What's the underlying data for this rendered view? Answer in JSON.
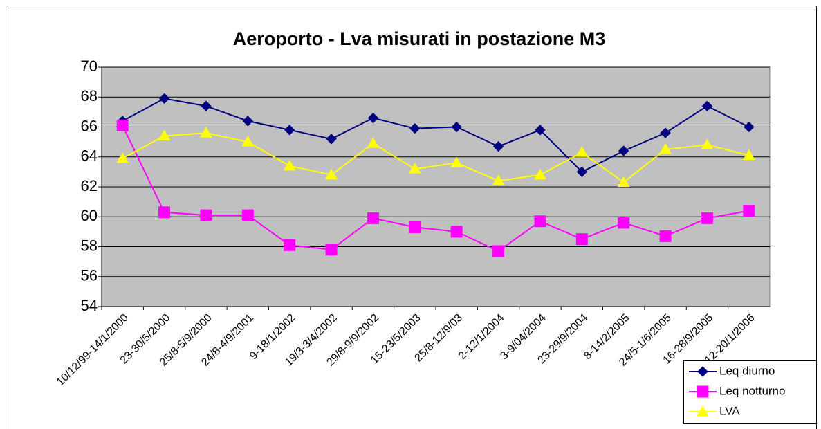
{
  "chart_data": {
    "type": "line",
    "title": "Aeroporto - Lva misurati in postazione M3",
    "categories": [
      "10/12/99-14/1/2000",
      "23-30/5/2000",
      "25/8-5/9/2000",
      "24/8-4/9/2001",
      "9-18/1/2002",
      "19/3-3/4/2002",
      "29/8-9/9/2002",
      "15-23/5/2003",
      "25/8-12/9/03",
      "2-12/1/2004",
      "3-9/04/2004",
      "23-29/9/2004",
      "8-14/2/2005",
      "24/5-1/6/2005",
      "16-28/9/2005",
      "12-20/1/2006"
    ],
    "series": [
      {
        "name": "Leq diurno",
        "color": "#000080",
        "marker": "diamond",
        "values": [
          66.4,
          67.9,
          67.4,
          66.4,
          65.8,
          65.2,
          66.6,
          65.9,
          66.0,
          64.7,
          65.8,
          63.0,
          64.4,
          65.6,
          67.4,
          66.0
        ]
      },
      {
        "name": "Leq notturno",
        "color": "#ff00ff",
        "marker": "square",
        "values": [
          66.1,
          60.3,
          60.1,
          60.1,
          58.1,
          57.8,
          59.9,
          59.3,
          59.0,
          57.7,
          59.7,
          58.5,
          59.6,
          58.7,
          59.9,
          60.4
        ]
      },
      {
        "name": "LVA",
        "color": "#ffff00",
        "marker": "triangle",
        "values": [
          63.9,
          65.4,
          65.6,
          65.0,
          63.4,
          62.8,
          64.9,
          63.2,
          63.6,
          62.4,
          62.8,
          64.3,
          62.3,
          64.5,
          64.8,
          64.1
        ]
      }
    ],
    "ylim": [
      54,
      70
    ],
    "yticks": [
      54,
      56,
      58,
      60,
      62,
      64,
      66,
      68,
      70
    ],
    "grid": true,
    "legend": "bottom-right"
  }
}
